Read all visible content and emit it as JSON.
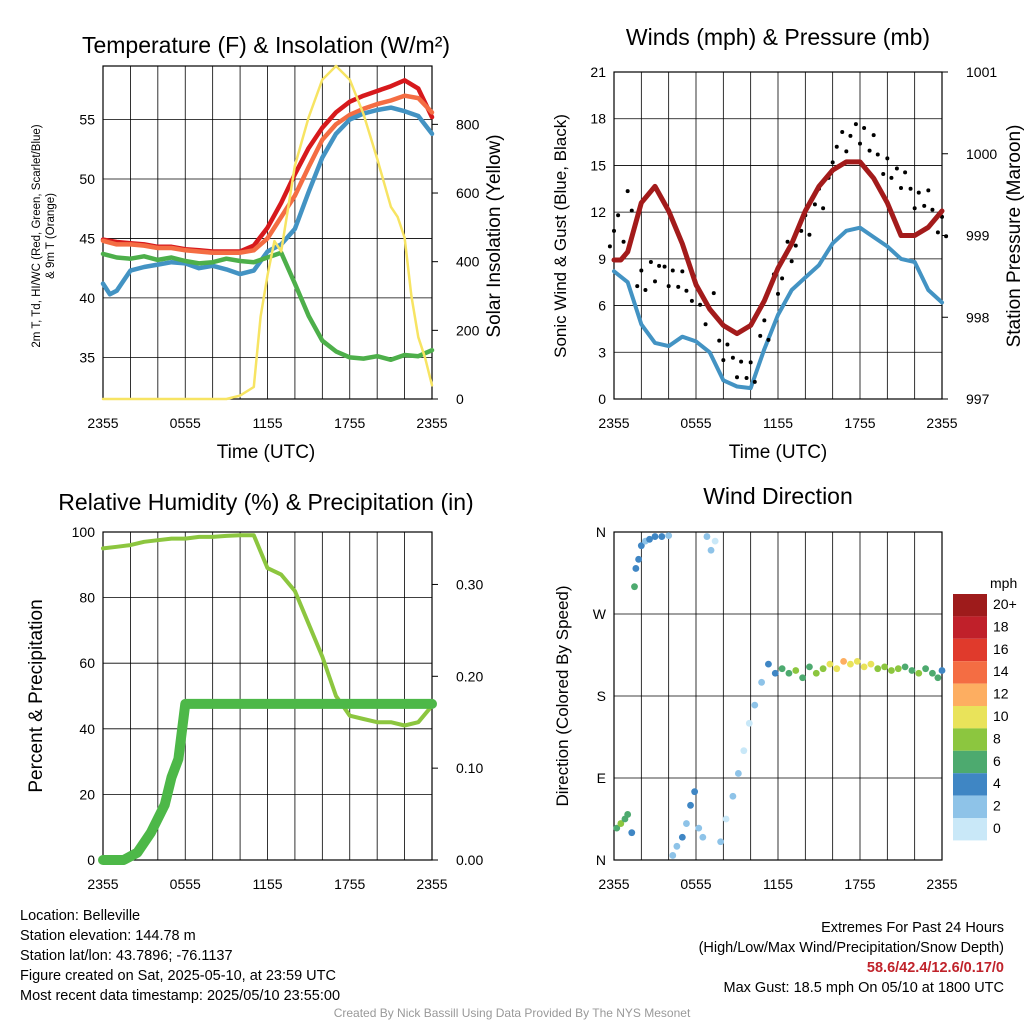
{
  "panels": [
    {
      "title": "Temperature (F) & Insolation (W/m²)",
      "xlabel": "Time (UTC)",
      "ylabel_left_line1": "2m T, Td, HI/WC (Red, Green, Scarlet/Blue)",
      "ylabel_left_line2": "& 9m T (Orange)",
      "ylabel_right": "Solar Insolation (Yellow)"
    },
    {
      "title": "Winds (mph) & Pressure (mb)",
      "xlabel": "Time (UTC)",
      "ylabel_left": "Sonic Wind & Gust (Blue, Black)",
      "ylabel_right": "Station Pressure (Maroon)"
    },
    {
      "title": "Relative Humidity (%) & Precipitation (in)",
      "ylabel_left": "Percent & Precipitation"
    },
    {
      "title": "Wind Direction",
      "ylabel_left": "Direction (Colored By Speed)"
    }
  ],
  "chart_data": [
    {
      "type": "line",
      "x_ticks": [
        "2355",
        "0555",
        "1155",
        "1755",
        "2355"
      ],
      "x_hours": [
        0,
        24
      ],
      "ylim": [
        31.5,
        59.5
      ],
      "y_ticks": [
        35,
        40,
        45,
        50,
        55
      ],
      "y2lim": [
        0,
        970
      ],
      "y2_ticks": [
        0,
        200,
        400,
        600,
        800
      ],
      "series": [
        {
          "color": "#d7191c",
          "axis": "left",
          "x": [
            0,
            1,
            2,
            3,
            4,
            5,
            6,
            7,
            8,
            9,
            10,
            11,
            12,
            13,
            14,
            15,
            16,
            17,
            18,
            19,
            20,
            21,
            22,
            23,
            24
          ],
          "values": [
            44.9,
            44.7,
            44.6,
            44.5,
            44.3,
            44.3,
            44.1,
            44.0,
            43.9,
            43.9,
            43.9,
            44.4,
            45.9,
            48.0,
            50.4,
            52.6,
            54.3,
            55.6,
            56.5,
            57.0,
            57.4,
            57.8,
            58.3,
            57.6,
            55.2
          ]
        },
        {
          "color": "#f46d43",
          "axis": "left",
          "x": [
            0,
            1,
            2,
            3,
            4,
            5,
            6,
            7,
            8,
            9,
            10,
            11,
            12,
            13,
            14,
            15,
            16,
            17,
            18,
            19,
            20,
            21,
            22,
            23,
            24
          ],
          "values": [
            44.8,
            44.5,
            44.5,
            44.4,
            44.2,
            44.2,
            44.0,
            43.9,
            43.8,
            43.8,
            43.8,
            44.0,
            45.0,
            46.8,
            48.6,
            51.0,
            53.3,
            54.6,
            55.4,
            55.9,
            56.3,
            56.6,
            57.0,
            56.8,
            55.6
          ]
        },
        {
          "color": "#4393c3",
          "axis": "left",
          "x": [
            0,
            0.5,
            1,
            2,
            3,
            4,
            5,
            6,
            7,
            8,
            9,
            10,
            11,
            12,
            13,
            14,
            15,
            16,
            17,
            18,
            19,
            20,
            21,
            22,
            23,
            24
          ],
          "values": [
            41.2,
            40.3,
            40.6,
            42.3,
            42.6,
            42.8,
            43.0,
            42.9,
            42.5,
            42.7,
            42.4,
            42.0,
            42.3,
            43.9,
            44.5,
            45.8,
            48.9,
            51.8,
            53.8,
            55.0,
            55.5,
            55.8,
            56.0,
            55.7,
            55.3,
            53.8
          ]
        },
        {
          "color": "#4daf4a",
          "axis": "left",
          "x": [
            0,
            1,
            2,
            3,
            4,
            5,
            6,
            7,
            8,
            9,
            10,
            11,
            12,
            13,
            14,
            15,
            16,
            17,
            18,
            19,
            20,
            21,
            22,
            23,
            24
          ],
          "values": [
            43.7,
            43.4,
            43.3,
            43.5,
            43.2,
            43.4,
            43.1,
            42.9,
            43.0,
            43.3,
            43.1,
            43.0,
            43.4,
            43.8,
            41.2,
            38.5,
            36.4,
            35.5,
            35.0,
            34.9,
            35.1,
            34.8,
            35.2,
            35.1,
            35.6
          ]
        },
        {
          "color": "#f7e463",
          "axis": "right",
          "x": [
            0,
            9,
            10,
            11,
            11.5,
            12,
            12.5,
            13,
            14,
            15,
            16,
            17,
            18,
            19,
            20,
            21,
            21.5,
            22,
            22.5,
            23,
            23.5,
            24
          ],
          "values": [
            0,
            0,
            10,
            35,
            240,
            360,
            460,
            430,
            680,
            820,
            930,
            970,
            930,
            830,
            700,
            560,
            530,
            470,
            300,
            180,
            120,
            40
          ]
        }
      ]
    },
    {
      "type": "line",
      "x_ticks": [
        "2355",
        "0555",
        "1155",
        "1755",
        "2355"
      ],
      "x_hours": [
        0,
        24
      ],
      "ylim": [
        0,
        21
      ],
      "y_ticks": [
        0,
        3,
        6,
        9,
        12,
        15,
        18,
        21
      ],
      "y2lim": [
        997,
        1001
      ],
      "y2_ticks": [
        997,
        998,
        999,
        1000,
        1001
      ],
      "series": [
        {
          "color": "#4393c3",
          "axis": "left",
          "x": [
            0,
            1,
            2,
            3,
            4,
            5,
            6,
            7,
            8,
            9,
            10,
            11,
            12,
            13,
            14,
            15,
            16,
            17,
            18,
            19,
            20,
            21,
            22,
            23,
            24
          ],
          "values": [
            8.2,
            7.5,
            4.8,
            3.6,
            3.4,
            4.0,
            3.7,
            3.0,
            1.2,
            0.8,
            0.7,
            3.2,
            5.4,
            7.0,
            7.8,
            8.6,
            10.0,
            10.8,
            11.0,
            10.4,
            9.8,
            9.0,
            8.8,
            7.0,
            6.2
          ]
        },
        {
          "color": "#000000",
          "axis": "left",
          "x": [
            0,
            1,
            2,
            3,
            4,
            5,
            6,
            7,
            8,
            9,
            10,
            11,
            12,
            13,
            14,
            15,
            16,
            17,
            18,
            19,
            20,
            21,
            22,
            23,
            24
          ],
          "values": [
            11.8,
            12.6,
            8.0,
            7.8,
            8.0,
            7.2,
            6.8,
            5.8,
            3.0,
            2.4,
            1.6,
            4.8,
            7.0,
            9.6,
            10.8,
            13.0,
            15.2,
            16.4,
            17.4,
            16.2,
            15.2,
            13.8,
            13.0,
            12.4,
            11.2
          ]
        },
        {
          "color": "#a31b1b",
          "axis": "right",
          "x": [
            0,
            0.5,
            1,
            2,
            3,
            4,
            5,
            6,
            7,
            8,
            9,
            10,
            11,
            12,
            13,
            14,
            15,
            16,
            17,
            18,
            19,
            20,
            21,
            22,
            23,
            24
          ],
          "values": [
            998.7,
            998.7,
            998.8,
            999.4,
            999.6,
            999.3,
            998.9,
            998.4,
            998.1,
            997.9,
            997.8,
            997.9,
            998.2,
            998.6,
            998.9,
            999.3,
            999.6,
            999.8,
            999.9,
            999.9,
            999.7,
            999.4,
            999.0,
            999.0,
            999.1,
            999.3
          ]
        }
      ]
    },
    {
      "type": "line",
      "x_ticks": [
        "2355",
        "0555",
        "1155",
        "1755",
        "2355"
      ],
      "x_hours": [
        0,
        24
      ],
      "ylim": [
        0,
        100
      ],
      "y_ticks": [
        0,
        20,
        40,
        60,
        80,
        100
      ],
      "y2lim": [
        0,
        0.3571
      ],
      "y2_ticks": [
        "0.00",
        "0.10",
        "0.20",
        "0.30"
      ],
      "series": [
        {
          "color": "#8cc63f",
          "axis": "left",
          "x": [
            0,
            1,
            2,
            3,
            4,
            5,
            6,
            7,
            8,
            9,
            10,
            11,
            12,
            13,
            14,
            15,
            16,
            17,
            18,
            19,
            20,
            21,
            22,
            23,
            24
          ],
          "values": [
            95,
            95.5,
            96,
            97,
            97.5,
            98,
            98,
            98.5,
            98.5,
            98.8,
            99,
            99,
            89,
            87,
            82,
            72,
            62,
            50,
            44,
            43,
            42,
            42,
            41,
            42,
            47
          ]
        },
        {
          "color": "#4db848",
          "axis": "right",
          "x": [
            0,
            1.5,
            2.5,
            3.5,
            4.5,
            5,
            5.5,
            6,
            7,
            10,
            14,
            18,
            22,
            24
          ],
          "values": [
            0,
            0,
            0.008,
            0.03,
            0.06,
            0.09,
            0.11,
            0.17,
            0.17,
            0.17,
            0.17,
            0.17,
            0.17,
            0.17
          ]
        }
      ]
    },
    {
      "type": "scatter",
      "x_ticks": [
        "2355",
        "0555",
        "1155",
        "1755",
        "2355"
      ],
      "x_hours": [
        0,
        24
      ],
      "y_ticks": [
        "N",
        "E",
        "S",
        "W",
        "N"
      ],
      "ylim": [
        0,
        360
      ],
      "legend_title": "mph",
      "legend_labels": [
        "20+",
        "18",
        "16",
        "14",
        "12",
        "10",
        "8",
        "6",
        "4",
        "2",
        "0"
      ],
      "legend_colors": [
        "#9e1b1b",
        "#c0202a",
        "#e03a2c",
        "#f46d43",
        "#fdae61",
        "#e9e35a",
        "#8cc63f",
        "#4daa6f",
        "#3f86c4",
        "#8ec3e8",
        "#c9e8f8"
      ],
      "points": [
        {
          "x": 0.2,
          "dir": 35,
          "speed": 7
        },
        {
          "x": 0.5,
          "dir": 40,
          "speed": 8
        },
        {
          "x": 0.8,
          "dir": 45,
          "speed": 7
        },
        {
          "x": 1.0,
          "dir": 50,
          "speed": 6
        },
        {
          "x": 1.3,
          "dir": 30,
          "speed": 4
        },
        {
          "x": 1.5,
          "dir": 300,
          "speed": 7
        },
        {
          "x": 1.6,
          "dir": 320,
          "speed": 4
        },
        {
          "x": 1.8,
          "dir": 330,
          "speed": 4
        },
        {
          "x": 2.0,
          "dir": 345,
          "speed": 4
        },
        {
          "x": 2.3,
          "dir": 350,
          "speed": 3
        },
        {
          "x": 2.6,
          "dir": 352,
          "speed": 4
        },
        {
          "x": 3.0,
          "dir": 355,
          "speed": 4
        },
        {
          "x": 3.5,
          "dir": 355,
          "speed": 4
        },
        {
          "x": 4.0,
          "dir": 356,
          "speed": 3
        },
        {
          "x": 4.3,
          "dir": 5,
          "speed": 3
        },
        {
          "x": 4.6,
          "dir": 15,
          "speed": 3
        },
        {
          "x": 5.0,
          "dir": 25,
          "speed": 4
        },
        {
          "x": 5.3,
          "dir": 40,
          "speed": 3
        },
        {
          "x": 5.6,
          "dir": 60,
          "speed": 4
        },
        {
          "x": 5.9,
          "dir": 75,
          "speed": 4
        },
        {
          "x": 6.2,
          "dir": 35,
          "speed": 3
        },
        {
          "x": 6.5,
          "dir": 25,
          "speed": 2
        },
        {
          "x": 6.8,
          "dir": 355,
          "speed": 2
        },
        {
          "x": 7.1,
          "dir": 340,
          "speed": 2
        },
        {
          "x": 7.4,
          "dir": 350,
          "speed": 1
        },
        {
          "x": 7.8,
          "dir": 20,
          "speed": 2
        },
        {
          "x": 8.2,
          "dir": 45,
          "speed": 1
        },
        {
          "x": 8.7,
          "dir": 70,
          "speed": 2
        },
        {
          "x": 9.1,
          "dir": 95,
          "speed": 2
        },
        {
          "x": 9.5,
          "dir": 120,
          "speed": 1
        },
        {
          "x": 9.9,
          "dir": 150,
          "speed": 1
        },
        {
          "x": 10.3,
          "dir": 170,
          "speed": 2
        },
        {
          "x": 10.8,
          "dir": 195,
          "speed": 3
        },
        {
          "x": 11.3,
          "dir": 215,
          "speed": 5
        },
        {
          "x": 11.8,
          "dir": 205,
          "speed": 4
        },
        {
          "x": 12.3,
          "dir": 210,
          "speed": 6
        },
        {
          "x": 12.8,
          "dir": 205,
          "speed": 7
        },
        {
          "x": 13.3,
          "dir": 208,
          "speed": 8
        },
        {
          "x": 13.8,
          "dir": 200,
          "speed": 7
        },
        {
          "x": 14.3,
          "dir": 212,
          "speed": 7
        },
        {
          "x": 14.8,
          "dir": 205,
          "speed": 8
        },
        {
          "x": 15.3,
          "dir": 210,
          "speed": 9
        },
        {
          "x": 15.8,
          "dir": 215,
          "speed": 10
        },
        {
          "x": 16.3,
          "dir": 210,
          "speed": 11
        },
        {
          "x": 16.8,
          "dir": 218,
          "speed": 12
        },
        {
          "x": 17.3,
          "dir": 215,
          "speed": 11
        },
        {
          "x": 17.8,
          "dir": 218,
          "speed": 10
        },
        {
          "x": 18.3,
          "dir": 212,
          "speed": 11
        },
        {
          "x": 18.8,
          "dir": 215,
          "speed": 10
        },
        {
          "x": 19.3,
          "dir": 210,
          "speed": 9
        },
        {
          "x": 19.8,
          "dir": 212,
          "speed": 9
        },
        {
          "x": 20.3,
          "dir": 208,
          "speed": 8
        },
        {
          "x": 20.8,
          "dir": 210,
          "speed": 8
        },
        {
          "x": 21.3,
          "dir": 212,
          "speed": 7
        },
        {
          "x": 21.8,
          "dir": 208,
          "speed": 7
        },
        {
          "x": 22.3,
          "dir": 205,
          "speed": 8
        },
        {
          "x": 22.8,
          "dir": 210,
          "speed": 7
        },
        {
          "x": 23.3,
          "dir": 205,
          "speed": 6
        },
        {
          "x": 23.7,
          "dir": 200,
          "speed": 6
        },
        {
          "x": 24.0,
          "dir": 208,
          "speed": 5
        }
      ]
    }
  ],
  "info": {
    "location": "Location: Belleville",
    "elevation": "Station elevation: 144.78 m",
    "latlon": "Station lat/lon: 43.7896; -76.1137",
    "created": "Figure created on Sat, 2025-05-10, at 23:59 UTC",
    "recent": "Most recent data timestamp: 2025/05/10 23:55:00",
    "extremes_title": "Extremes For Past 24 Hours",
    "extremes_fields": "(High/Low/Max Wind/Precipitation/Snow Depth)",
    "extremes_values": "58.6/42.4/12.6/0.17/0",
    "max_gust": "Max Gust: 18.5 mph On 05/10 at 1800 UTC",
    "credit": "Created By Nick Bassill Using Data Provided By The NYS Mesonet"
  }
}
